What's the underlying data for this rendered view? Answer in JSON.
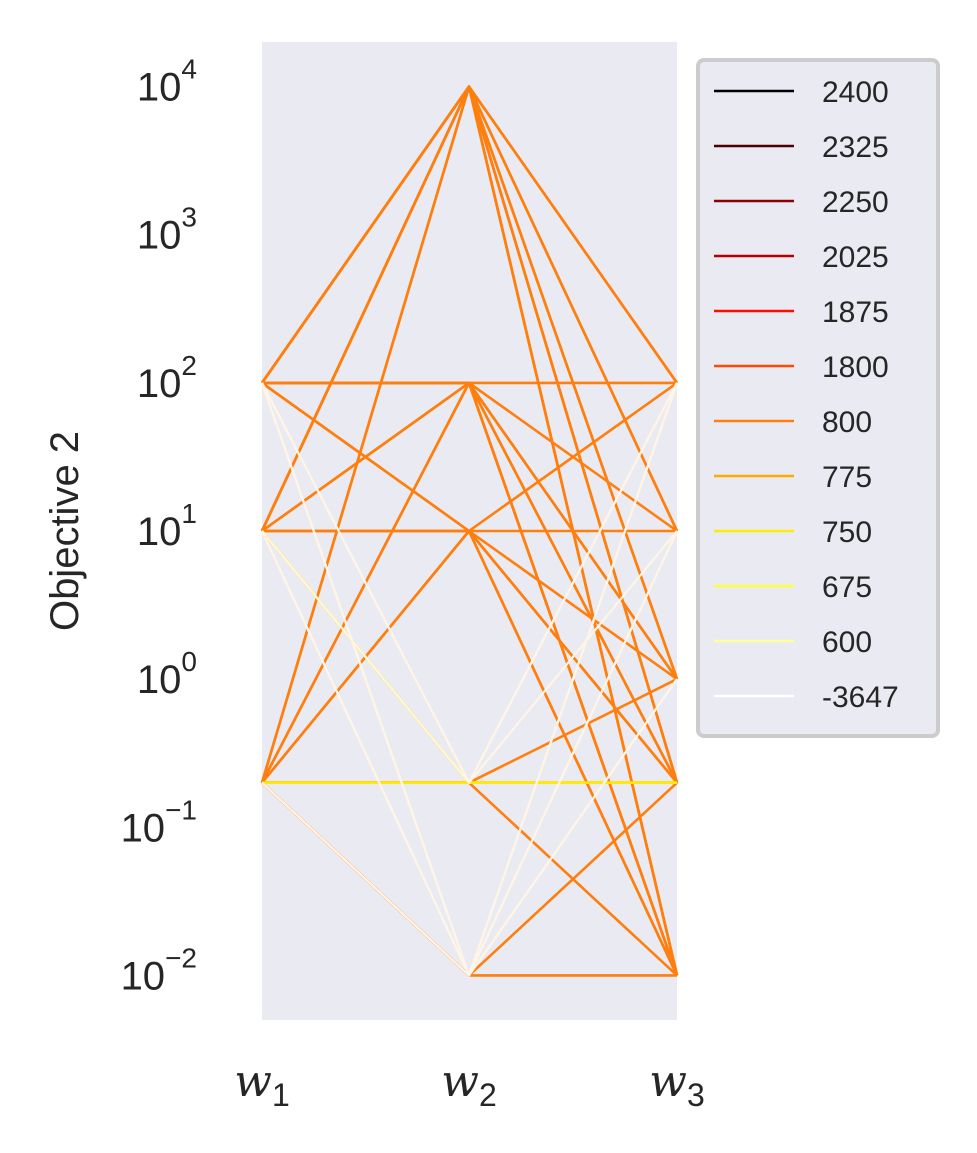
{
  "chart_data": {
    "type": "line",
    "subtype": "parallel-coordinates",
    "ylabel": "Objective 2",
    "yscale": "log",
    "ylim": [
      0.005,
      20000
    ],
    "grid": false,
    "background": "#eaeaf2",
    "y_ticks": [
      {
        "base": "10",
        "exp": "−2",
        "value": 0.01
      },
      {
        "base": "10",
        "exp": "−1",
        "value": 0.1
      },
      {
        "base": "10",
        "exp": "0",
        "value": 1
      },
      {
        "base": "10",
        "exp": "1",
        "value": 10
      },
      {
        "base": "10",
        "exp": "2",
        "value": 100
      },
      {
        "base": "10",
        "exp": "3",
        "value": 1000
      },
      {
        "base": "10",
        "exp": "4",
        "value": 10000
      }
    ],
    "axes": [
      {
        "var": "w",
        "sub": "1"
      },
      {
        "var": "w",
        "sub": "2"
      },
      {
        "var": "w",
        "sub": "3"
      }
    ],
    "legend": {
      "placement": "outside-right",
      "entries": [
        {
          "label": "2400",
          "color": "#000000"
        },
        {
          "label": "2325",
          "color": "#4d0000"
        },
        {
          "label": "2250",
          "color": "#8b0000"
        },
        {
          "label": "2025",
          "color": "#b30000"
        },
        {
          "label": "1875",
          "color": "#ff0d00"
        },
        {
          "label": "1800",
          "color": "#ff4a00"
        },
        {
          "label": "800",
          "color": "#ff7f0e"
        },
        {
          "label": "775",
          "color": "#ffaa00"
        },
        {
          "label": "750",
          "color": "#ffea00"
        },
        {
          "label": "675",
          "color": "#ffff33"
        },
        {
          "label": "600",
          "color": "#ffff99"
        },
        {
          "label": "-3647",
          "color": "#ffffff"
        }
      ]
    },
    "series": [
      {
        "group": "800",
        "color": "#ff7f0e",
        "lines": [
          [
            100,
            10000,
            100
          ],
          [
            100,
            10000,
            10
          ],
          [
            100,
            10000,
            1
          ],
          [
            100,
            10000,
            0.2
          ],
          [
            100,
            10000,
            0.01
          ],
          [
            10,
            10000,
            100
          ],
          [
            10,
            10000,
            10
          ],
          [
            10,
            10000,
            1
          ],
          [
            10,
            10000,
            0.2
          ],
          [
            10,
            10000,
            0.01
          ],
          [
            0.2,
            10000,
            0.2
          ],
          [
            0.2,
            10000,
            0.01
          ],
          [
            100,
            100,
            100
          ],
          [
            100,
            100,
            10
          ],
          [
            100,
            100,
            1
          ],
          [
            100,
            100,
            0.2
          ],
          [
            100,
            100,
            0.01
          ],
          [
            10,
            100,
            0.2
          ],
          [
            10,
            100,
            0.01
          ],
          [
            0.2,
            100,
            1
          ],
          [
            0.2,
            100,
            0.01
          ],
          [
            100,
            10,
            100
          ],
          [
            100,
            10,
            0.2
          ],
          [
            10,
            10,
            10
          ],
          [
            10,
            10,
            1
          ],
          [
            10,
            10,
            0.01
          ],
          [
            0.2,
            10,
            0.2
          ],
          [
            0.2,
            10,
            0.01
          ],
          [
            0.2,
            0.2,
            0.2
          ],
          [
            0.2,
            0.2,
            1
          ],
          [
            0.2,
            0.2,
            0.01
          ],
          [
            0.2,
            0.01,
            0.01
          ],
          [
            0.2,
            0.01,
            0.2
          ]
        ]
      },
      {
        "group": "750",
        "color": "#ffea00",
        "lines": [
          [
            10,
            0.2,
            0.2
          ],
          [
            0.2,
            0.2,
            0.2
          ]
        ]
      },
      {
        "group": "-3647",
        "color": "#fff5e6",
        "lines": [
          [
            100,
            0.2,
            100
          ],
          [
            100,
            0.2,
            10
          ],
          [
            100,
            0.01,
            100
          ],
          [
            100,
            0.01,
            10
          ],
          [
            100,
            0.01,
            1
          ],
          [
            10,
            0.2,
            100
          ],
          [
            10,
            0.01,
            100
          ],
          [
            10,
            0.01,
            10
          ],
          [
            0.2,
            0.01,
            100
          ],
          [
            0.2,
            0.01,
            1
          ]
        ]
      }
    ]
  }
}
